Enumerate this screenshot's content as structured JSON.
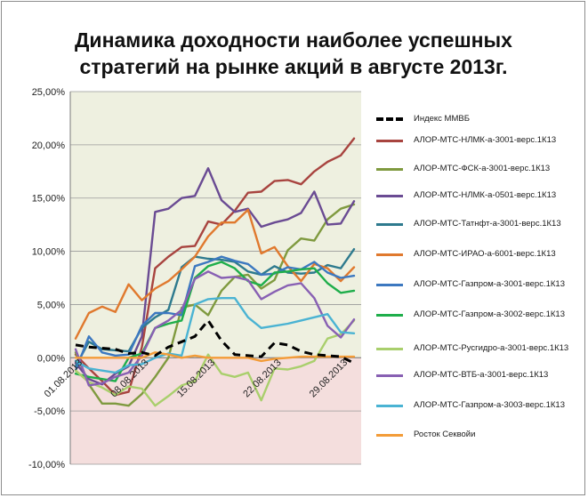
{
  "chart_data": {
    "type": "line",
    "title_lines": [
      "Динамика доходности наиболее успешных",
      "стратегий на рынке акций в августе 2013г."
    ],
    "ylim": [
      -10,
      25
    ],
    "yticks": [
      "-10,00%",
      "-5,00%",
      "0,00%",
      "5,00%",
      "10,00%",
      "15,00%",
      "20,00%",
      "25,00%"
    ],
    "ytick_values": [
      -10,
      -5,
      0,
      5,
      10,
      15,
      20,
      25
    ],
    "x": [
      "01.08.2013",
      "02.08.2013",
      "05.08.2013",
      "06.08.2013",
      "07.08.2013",
      "08.08.2013",
      "09.08.2013",
      "12.08.2013",
      "13.08.2013",
      "14.08.2013",
      "15.08.2013",
      "16.08.2013",
      "19.08.2013",
      "20.08.2013",
      "21.08.2013",
      "22.08.2013",
      "23.08.2013",
      "26.08.2013",
      "27.08.2013",
      "28.08.2013",
      "29.08.2013",
      "30.08.2013"
    ],
    "xtick_labels": [
      "01.08.2013",
      "08.08.2013",
      "15.08.2013",
      "22.08.2013",
      "29.08.2013"
    ],
    "xtick_index": [
      0,
      5,
      10,
      15,
      20
    ],
    "background_bands": {
      "positive": "#eef0e0",
      "negative": "#f4dedd"
    },
    "grid": true,
    "legend_position": "right",
    "series": [
      {
        "name": "Индекс ММВБ",
        "color": "#000000",
        "dashed": true,
        "width": 3,
        "values": [
          1.2,
          1.0,
          0.9,
          0.8,
          0.4,
          0.5,
          0.2,
          1.0,
          1.5,
          2.0,
          3.5,
          1.6,
          0.3,
          0.2,
          0.1,
          1.4,
          1.2,
          0.6,
          0.3,
          0.2,
          0.1,
          -0.5
        ]
      },
      {
        "name": "АЛОР-МТС-НЛМК-а-3001-верс.1К13",
        "color": "#a8443f",
        "dashed": false,
        "width": 2.4,
        "values": [
          0.3,
          -1.0,
          -2.2,
          -3.5,
          -3.2,
          1.0,
          8.4,
          9.5,
          10.4,
          10.5,
          12.8,
          12.5,
          13.8,
          15.5,
          15.6,
          16.6,
          16.7,
          16.3,
          17.5,
          18.4,
          19.0,
          20.6
        ]
      },
      {
        "name": "АЛОР-МТС-ФСК-а-3001-верс.1К13",
        "color": "#7f9a3f",
        "dashed": false,
        "width": 2.4,
        "values": [
          0.5,
          -2.5,
          -4.3,
          -4.3,
          -4.5,
          -3.4,
          -1.8,
          0.0,
          4.7,
          5.0,
          4.0,
          6.3,
          7.6,
          7.8,
          6.5,
          7.3,
          10.1,
          11.2,
          11.0,
          13.0,
          14.0,
          14.4
        ]
      },
      {
        "name": "АЛОР-МТС-НЛМК-а-0501-верс.1К13",
        "color": "#6a4b93",
        "dashed": false,
        "width": 2.4,
        "values": [
          -0.5,
          -2.0,
          -2.5,
          -1.5,
          -0.8,
          2.0,
          13.7,
          14.0,
          15.0,
          15.2,
          17.8,
          14.8,
          13.7,
          14.0,
          12.3,
          12.7,
          13.0,
          13.6,
          15.6,
          12.5,
          12.6,
          14.7
        ]
      },
      {
        "name": "АЛОР-МТС-Татнфт-а-3001-верс.1К13",
        "color": "#2e7a8e",
        "dashed": false,
        "width": 2.4,
        "values": [
          -0.8,
          1.5,
          0.8,
          0.7,
          0.6,
          2.8,
          3.8,
          4.5,
          8.5,
          9.5,
          9.3,
          9.2,
          9.0,
          8.1,
          7.8,
          8.6,
          8.0,
          7.9,
          8.0,
          8.7,
          8.4,
          10.2
        ]
      },
      {
        "name": "АЛОР-МТС-ИРАО-а-6001-верс.1К13",
        "color": "#e0792e",
        "dashed": false,
        "width": 2.4,
        "values": [
          1.8,
          4.2,
          4.8,
          4.3,
          6.9,
          5.4,
          6.5,
          7.2,
          8.3,
          9.5,
          11.4,
          12.7,
          12.7,
          13.9,
          9.8,
          10.4,
          8.6,
          7.2,
          8.8,
          8.4,
          7.2,
          8.5
        ]
      },
      {
        "name": "АЛОР-МТС-Газпром-а-3001-верс.1К13",
        "color": "#3c78c0",
        "dashed": false,
        "width": 2.4,
        "values": [
          -1.2,
          2.0,
          0.5,
          0.2,
          0.3,
          3.0,
          4.2,
          4.2,
          4.0,
          8.6,
          9.0,
          9.5,
          9.1,
          8.8,
          7.8,
          7.9,
          8.5,
          8.3,
          9.0,
          8.0,
          7.5,
          7.7
        ]
      },
      {
        "name": "АЛОР-МТС-Газпром-а-3002-верс.1К13",
        "color": "#1fae4b",
        "dashed": false,
        "width": 2.4,
        "values": [
          -1.5,
          -1.8,
          -2.0,
          -2.2,
          0.0,
          0.4,
          2.8,
          3.2,
          3.5,
          7.5,
          8.6,
          9.0,
          8.4,
          7.2,
          6.8,
          8.0,
          8.1,
          8.3,
          8.4,
          7.0,
          6.1,
          6.3
        ]
      },
      {
        "name": "АЛОР-МТС-Русгидро-а-3001-верс.1К13",
        "color": "#a9cf6c",
        "dashed": false,
        "width": 2.4,
        "values": [
          -1.2,
          -2.3,
          -2.8,
          -3.5,
          -2.7,
          -2.9,
          -4.5,
          -3.6,
          -2.6,
          -2.2,
          0.3,
          -1.5,
          -1.8,
          -1.4,
          -4.0,
          -1.0,
          -1.1,
          -0.8,
          -0.3,
          1.8,
          2.2,
          3.5
        ]
      },
      {
        "name": "АЛОР-МТС-ВТБ-а-3001-верс.1К13",
        "color": "#8860b3",
        "dashed": false,
        "width": 2.4,
        "values": [
          0.8,
          -2.6,
          -2.4,
          -1.8,
          -1.4,
          0.2,
          2.8,
          3.5,
          4.5,
          7.4,
          8.1,
          7.5,
          7.6,
          7.3,
          5.5,
          6.2,
          6.8,
          7.0,
          5.6,
          3.0,
          1.9,
          3.6
        ]
      },
      {
        "name": "АЛОР-МТС-Газпром-а-3003-верс.1К13",
        "color": "#4ab3d3",
        "dashed": false,
        "width": 2.4,
        "values": [
          -0.3,
          -1.0,
          -1.2,
          -1.4,
          -0.7,
          -0.6,
          0.0,
          0.4,
          0.2,
          5.0,
          5.5,
          5.6,
          5.6,
          3.8,
          2.8,
          3.0,
          3.2,
          3.5,
          3.8,
          4.1,
          2.4,
          2.3
        ]
      },
      {
        "name": "Росток Секвойи",
        "color": "#f39c38",
        "dashed": false,
        "width": 2.4,
        "values": [
          0.0,
          0.0,
          0.0,
          0.0,
          0.0,
          0.0,
          0.5,
          0.3,
          0.0,
          0.2,
          0.0,
          0.0,
          0.0,
          0.0,
          -0.3,
          -0.1,
          0.0,
          0.1,
          0.1,
          0.1,
          0.1,
          0.1
        ]
      }
    ]
  }
}
